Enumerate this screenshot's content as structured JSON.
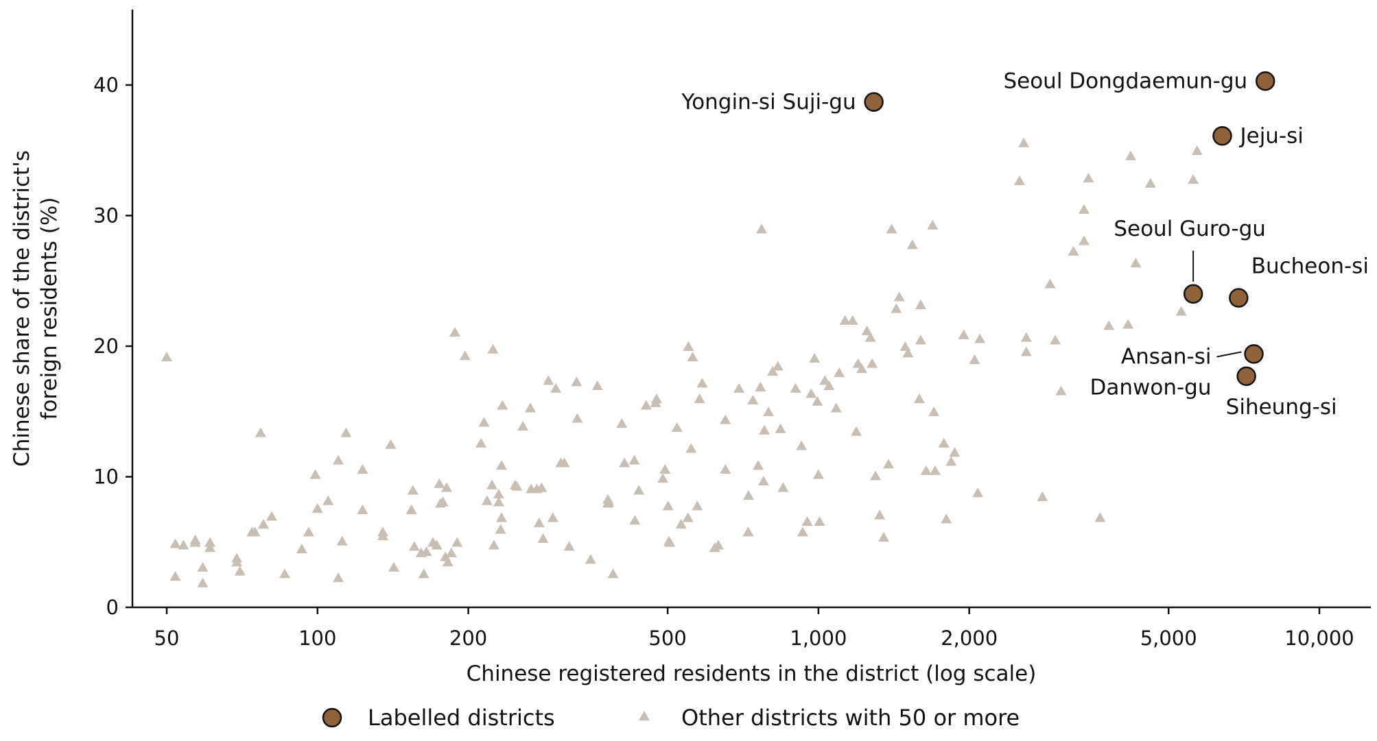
{
  "chart_data": {
    "type": "scatter",
    "xlabel": "Chinese registered residents in the district (log scale)",
    "ylabel_lines": [
      "Chinese share of the district's",
      "foreign residents (%)"
    ],
    "x_scale": "log",
    "xlim": [
      43,
      12300
    ],
    "ylim": [
      0,
      46
    ],
    "x_ticks": [
      {
        "value": 50,
        "label": "50"
      },
      {
        "value": 100,
        "label": "100"
      },
      {
        "value": 200,
        "label": "200"
      },
      {
        "value": 500,
        "label": "500"
      },
      {
        "value": 1000,
        "label": "1,000"
      },
      {
        "value": 2000,
        "label": "2,000"
      },
      {
        "value": 5000,
        "label": "5,000"
      },
      {
        "value": 10000,
        "label": "10,000"
      }
    ],
    "y_ticks": [
      {
        "value": 0,
        "label": "0"
      },
      {
        "value": 10,
        "label": "10"
      },
      {
        "value": 20,
        "label": "20"
      },
      {
        "value": 30,
        "label": "30"
      },
      {
        "value": 40,
        "label": "40"
      }
    ],
    "grid": false,
    "legend_position": "bottom",
    "colors": {
      "labelled": "#8f623a",
      "labelled_outline": "#111111",
      "other": "#c9beb3",
      "axis": "#111111"
    },
    "series": [
      {
        "name": "Labelled districts",
        "marker": "circle",
        "points": [
          {
            "label": "Seoul Dongdaemun-gu",
            "x": 7800,
            "y": 40.3,
            "label_side": "left"
          },
          {
            "label": "Yongin-si Suji-gu",
            "x": 1290,
            "y": 38.7,
            "label_side": "left"
          },
          {
            "label": "Jeju-si",
            "x": 6400,
            "y": 36.1,
            "label_side": "right"
          },
          {
            "label": "Seoul Guro-gu",
            "x": 5600,
            "y": 24.0,
            "label_side": "above-leader"
          },
          {
            "label": "Bucheon-si",
            "x": 6900,
            "y": 23.7,
            "label_side": "above-right"
          },
          {
            "label": "Ansan-si Danwon-gu",
            "label_lines": [
              "Ansan-si",
              "Danwon-gu"
            ],
            "x": 7400,
            "y": 19.4,
            "label_side": "left-leader"
          },
          {
            "label": "Siheung-si",
            "x": 7150,
            "y": 17.7,
            "label_side": "below"
          }
        ]
      },
      {
        "name": "Other districts with 50 or more",
        "marker": "triangle",
        "points": [
          [
            50,
            19.1
          ],
          [
            52,
            4.8
          ],
          [
            54,
            4.7
          ],
          [
            52,
            2.3
          ],
          [
            57,
            4.9
          ],
          [
            57,
            5.1
          ],
          [
            59,
            1.8
          ],
          [
            59,
            3.0
          ],
          [
            61,
            4.9
          ],
          [
            61,
            4.5
          ],
          [
            69,
            3.4
          ],
          [
            69,
            3.7
          ],
          [
            70,
            2.7
          ],
          [
            74,
            5.7
          ],
          [
            75,
            5.7
          ],
          [
            77,
            13.3
          ],
          [
            78,
            6.3
          ],
          [
            81,
            6.9
          ],
          [
            86,
            2.5
          ],
          [
            93,
            4.4
          ],
          [
            96,
            5.7
          ],
          [
            99,
            10.1
          ],
          [
            100,
            7.5
          ],
          [
            105,
            8.1
          ],
          [
            110,
            2.2
          ],
          [
            110,
            11.2
          ],
          [
            112,
            5.0
          ],
          [
            114,
            13.3
          ],
          [
            123,
            7.4
          ],
          [
            123,
            10.5
          ],
          [
            135,
            5.7
          ],
          [
            135,
            5.4
          ],
          [
            140,
            12.4
          ],
          [
            142,
            3.0
          ],
          [
            154,
            7.4
          ],
          [
            155,
            8.9
          ],
          [
            156,
            4.6
          ],
          [
            161,
            4.1
          ],
          [
            163,
            2.5
          ],
          [
            165,
            4.2
          ],
          [
            170,
            4.9
          ],
          [
            173,
            4.7
          ],
          [
            175,
            9.4
          ],
          [
            176,
            7.9
          ],
          [
            178,
            8.0
          ],
          [
            180,
            3.8
          ],
          [
            181,
            9.1
          ],
          [
            182,
            3.4
          ],
          [
            185,
            4.1
          ],
          [
            190,
            4.9
          ],
          [
            188,
            21.0
          ],
          [
            197,
            19.2
          ],
          [
            212,
            12.5
          ],
          [
            215,
            14.1
          ],
          [
            218,
            8.1
          ],
          [
            223,
            9.3
          ],
          [
            224,
            19.7
          ],
          [
            225,
            4.7
          ],
          [
            230,
            8.0
          ],
          [
            230,
            8.6
          ],
          [
            232,
            5.9
          ],
          [
            233,
            10.8
          ],
          [
            233,
            6.8
          ],
          [
            234,
            15.4
          ],
          [
            248,
            9.3
          ],
          [
            250,
            9.2
          ],
          [
            257,
            13.8
          ],
          [
            266,
            15.2
          ],
          [
            267,
            9.0
          ],
          [
            274,
            9.0
          ],
          [
            277,
            6.4
          ],
          [
            280,
            9.1
          ],
          [
            282,
            5.2
          ],
          [
            289,
            17.3
          ],
          [
            295,
            6.8
          ],
          [
            299,
            16.7
          ],
          [
            306,
            11.0
          ],
          [
            311,
            11.0
          ],
          [
            318,
            4.6
          ],
          [
            329,
            17.2
          ],
          [
            330,
            14.4
          ],
          [
            351,
            3.6
          ],
          [
            362,
            16.9
          ],
          [
            380,
            7.9
          ],
          [
            380,
            8.2
          ],
          [
            381,
            8.0
          ],
          [
            389,
            2.5
          ],
          [
            405,
            14.0
          ],
          [
            410,
            11.0
          ],
          [
            429,
            11.2
          ],
          [
            430,
            6.6
          ],
          [
            438,
            8.9
          ],
          [
            453,
            15.4
          ],
          [
            473,
            15.6
          ],
          [
            475,
            15.9
          ],
          [
            489,
            9.8
          ],
          [
            494,
            10.5
          ],
          [
            501,
            7.7
          ],
          [
            503,
            5.0
          ],
          [
            505,
            4.9
          ],
          [
            522,
            13.7
          ],
          [
            532,
            6.3
          ],
          [
            549,
            6.8
          ],
          [
            550,
            19.9
          ],
          [
            557,
            12.1
          ],
          [
            561,
            19.1
          ],
          [
            573,
            7.7
          ],
          [
            579,
            15.9
          ],
          [
            586,
            17.1
          ],
          [
            621,
            4.5
          ],
          [
            631,
            4.7
          ],
          [
            652,
            10.5
          ],
          [
            652,
            14.3
          ],
          [
            694,
            16.7
          ],
          [
            724,
            5.7
          ],
          [
            725,
            8.5
          ],
          [
            740,
            15.8
          ],
          [
            758,
            10.8
          ],
          [
            766,
            16.8
          ],
          [
            770,
            28.9
          ],
          [
            777,
            9.6
          ],
          [
            780,
            13.5
          ],
          [
            795,
            14.9
          ],
          [
            810,
            18.0
          ],
          [
            830,
            18.4
          ],
          [
            840,
            13.6
          ],
          [
            850,
            9.1
          ],
          [
            900,
            16.7
          ],
          [
            925,
            12.3
          ],
          [
            930,
            5.7
          ],
          [
            950,
            6.5
          ],
          [
            967,
            16.3
          ],
          [
            982,
            19.0
          ],
          [
            995,
            15.7
          ],
          [
            1000,
            10.1
          ],
          [
            1005,
            6.5
          ],
          [
            1030,
            17.3
          ],
          [
            1050,
            16.9
          ],
          [
            1085,
            15.2
          ],
          [
            1100,
            17.9
          ],
          [
            1130,
            21.9
          ],
          [
            1170,
            21.9
          ],
          [
            1190,
            13.4
          ],
          [
            1200,
            18.6
          ],
          [
            1220,
            18.2
          ],
          [
            1250,
            21.1
          ],
          [
            1270,
            20.6
          ],
          [
            1280,
            18.6
          ],
          [
            1300,
            10.0
          ],
          [
            1325,
            7.0
          ],
          [
            1350,
            5.3
          ],
          [
            1380,
            10.9
          ],
          [
            1400,
            28.9
          ],
          [
            1430,
            22.8
          ],
          [
            1450,
            23.7
          ],
          [
            1490,
            19.9
          ],
          [
            1510,
            19.4
          ],
          [
            1540,
            27.7
          ],
          [
            1590,
            15.9
          ],
          [
            1600,
            23.1
          ],
          [
            1600,
            20.4
          ],
          [
            1640,
            10.4
          ],
          [
            1690,
            29.2
          ],
          [
            1700,
            14.9
          ],
          [
            1710,
            10.4
          ],
          [
            1780,
            12.5
          ],
          [
            1800,
            6.7
          ],
          [
            1840,
            11.1
          ],
          [
            1870,
            11.8
          ],
          [
            1950,
            20.8
          ],
          [
            2050,
            18.9
          ],
          [
            2080,
            8.7
          ],
          [
            2100,
            20.5
          ],
          [
            2520,
            32.6
          ],
          [
            2570,
            35.5
          ],
          [
            2600,
            20.6
          ],
          [
            2600,
            19.5
          ],
          [
            2800,
            8.4
          ],
          [
            2900,
            24.7
          ],
          [
            2970,
            20.4
          ],
          [
            3050,
            16.5
          ],
          [
            3230,
            27.2
          ],
          [
            3390,
            28.0
          ],
          [
            3390,
            30.4
          ],
          [
            3460,
            32.8
          ],
          [
            3650,
            6.8
          ],
          [
            3800,
            21.5
          ],
          [
            4150,
            21.6
          ],
          [
            4300,
            26.3
          ],
          [
            4200,
            34.5
          ],
          [
            4600,
            32.4
          ],
          [
            5300,
            22.6
          ],
          [
            5600,
            32.7
          ],
          [
            5700,
            34.9
          ]
        ]
      }
    ]
  },
  "legend": {
    "labelled": "Labelled districts",
    "other": "Other districts with 50 or more"
  }
}
